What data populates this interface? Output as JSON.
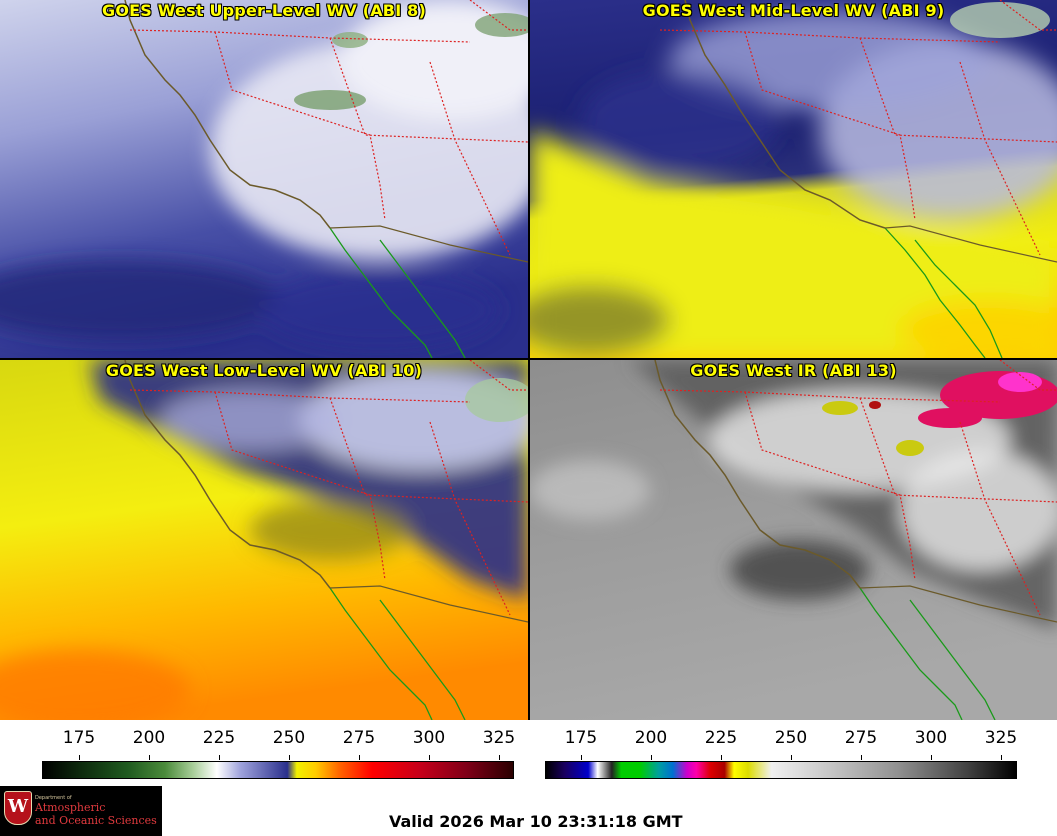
{
  "panels": [
    {
      "id": "upper",
      "title": "GOES West Upper-Level WV (ABI 8)"
    },
    {
      "id": "mid",
      "title": "GOES West Mid-Level WV (ABI 9)"
    },
    {
      "id": "low",
      "title": "GOES West Low-Level WV (ABI 10)"
    },
    {
      "id": "ir",
      "title": "GOES West IR (ABI 13)"
    }
  ],
  "colorbars": {
    "wv": {
      "ticks": [
        "175",
        "200",
        "225",
        "250",
        "275",
        "300",
        "325"
      ]
    },
    "ir": {
      "ticks": [
        "175",
        "200",
        "225",
        "250",
        "275",
        "300",
        "325"
      ]
    }
  },
  "logo": {
    "seal": "W",
    "dept": "Department of",
    "line1": "Atmospheric",
    "line2": "and Oceanic Sciences"
  },
  "valid_time": "Valid 2026 Mar 10 23:31:18 GMT",
  "colors": {
    "title": "#ffff00",
    "state_borders": "#dd2222",
    "coastline": "#6b5a2a",
    "mexico_coast": "#1a9a1a"
  }
}
